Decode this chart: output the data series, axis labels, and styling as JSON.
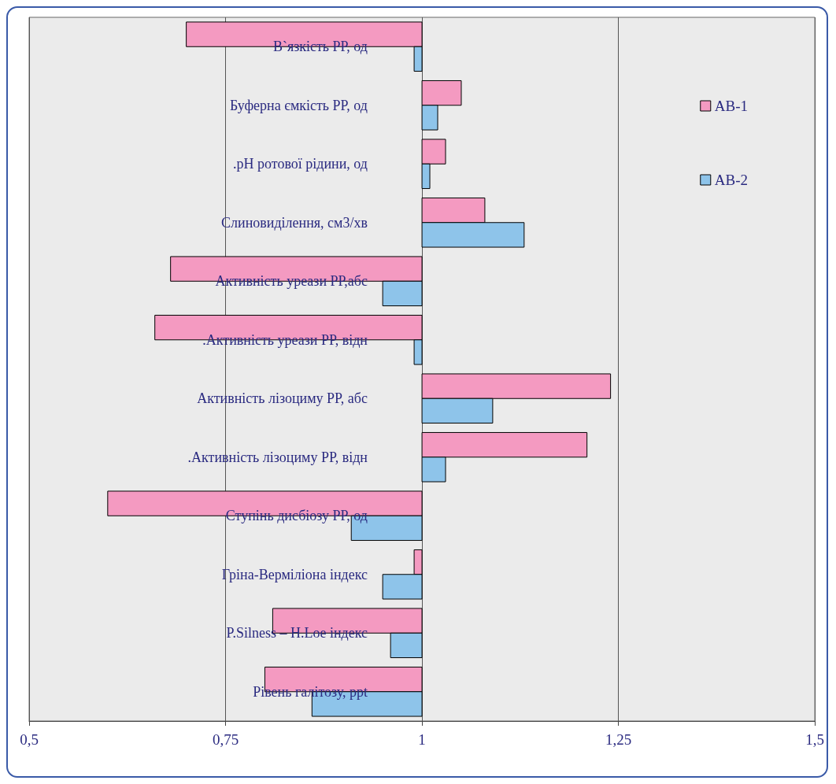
{
  "chart_data": {
    "type": "bar",
    "orientation": "horizontal",
    "categories": [
      "В`язкість РР, од",
      "Буферна ємкість РР, од",
      ".рН ротової рідини, од",
      "Слиновиділення, см3/хв",
      "Активність уреази РР,абс",
      ".Активність уреази РР, відн",
      "Активність лізоциму РР, абс",
      ".Активність лізоциму РР, відн",
      "Ступінь дисбіозу РР, од",
      "Гріна-Верміліона індекс",
      "P.Silness – H.Loe індекс",
      "Рівень галітозу, ppt"
    ],
    "series": [
      {
        "name": "АВ-1",
        "color": "#f49ac1",
        "base": [
          1,
          1,
          1,
          1,
          1,
          1,
          1,
          1,
          1,
          1,
          1,
          1
        ],
        "values": [
          -0.3,
          0.05,
          0.03,
          0.08,
          -0.32,
          -0.34,
          0.24,
          0.21,
          -0.4,
          -0.01,
          -0.19,
          -0.2
        ]
      },
      {
        "name": "АВ-2",
        "color": "#8ec4ea",
        "base": [
          1,
          1,
          1,
          1,
          1,
          1,
          1,
          1,
          1,
          1,
          1,
          1
        ],
        "values": [
          -0.01,
          0.02,
          0.01,
          0.13,
          -0.05,
          -0.01,
          0.09,
          0.03,
          -0.09,
          -0.05,
          -0.04,
          -0.14
        ]
      }
    ],
    "xlim": [
      0.5,
      1.5
    ],
    "xticks": [
      {
        "value": 0.5,
        "label": "0,5"
      },
      {
        "value": 0.75,
        "label": "0,75"
      },
      1,
      {
        "value": 1.25,
        "label": "1,25"
      },
      {
        "value": 1.5,
        "label": "1,5"
      }
    ],
    "grid": "x",
    "legend": "top right"
  }
}
